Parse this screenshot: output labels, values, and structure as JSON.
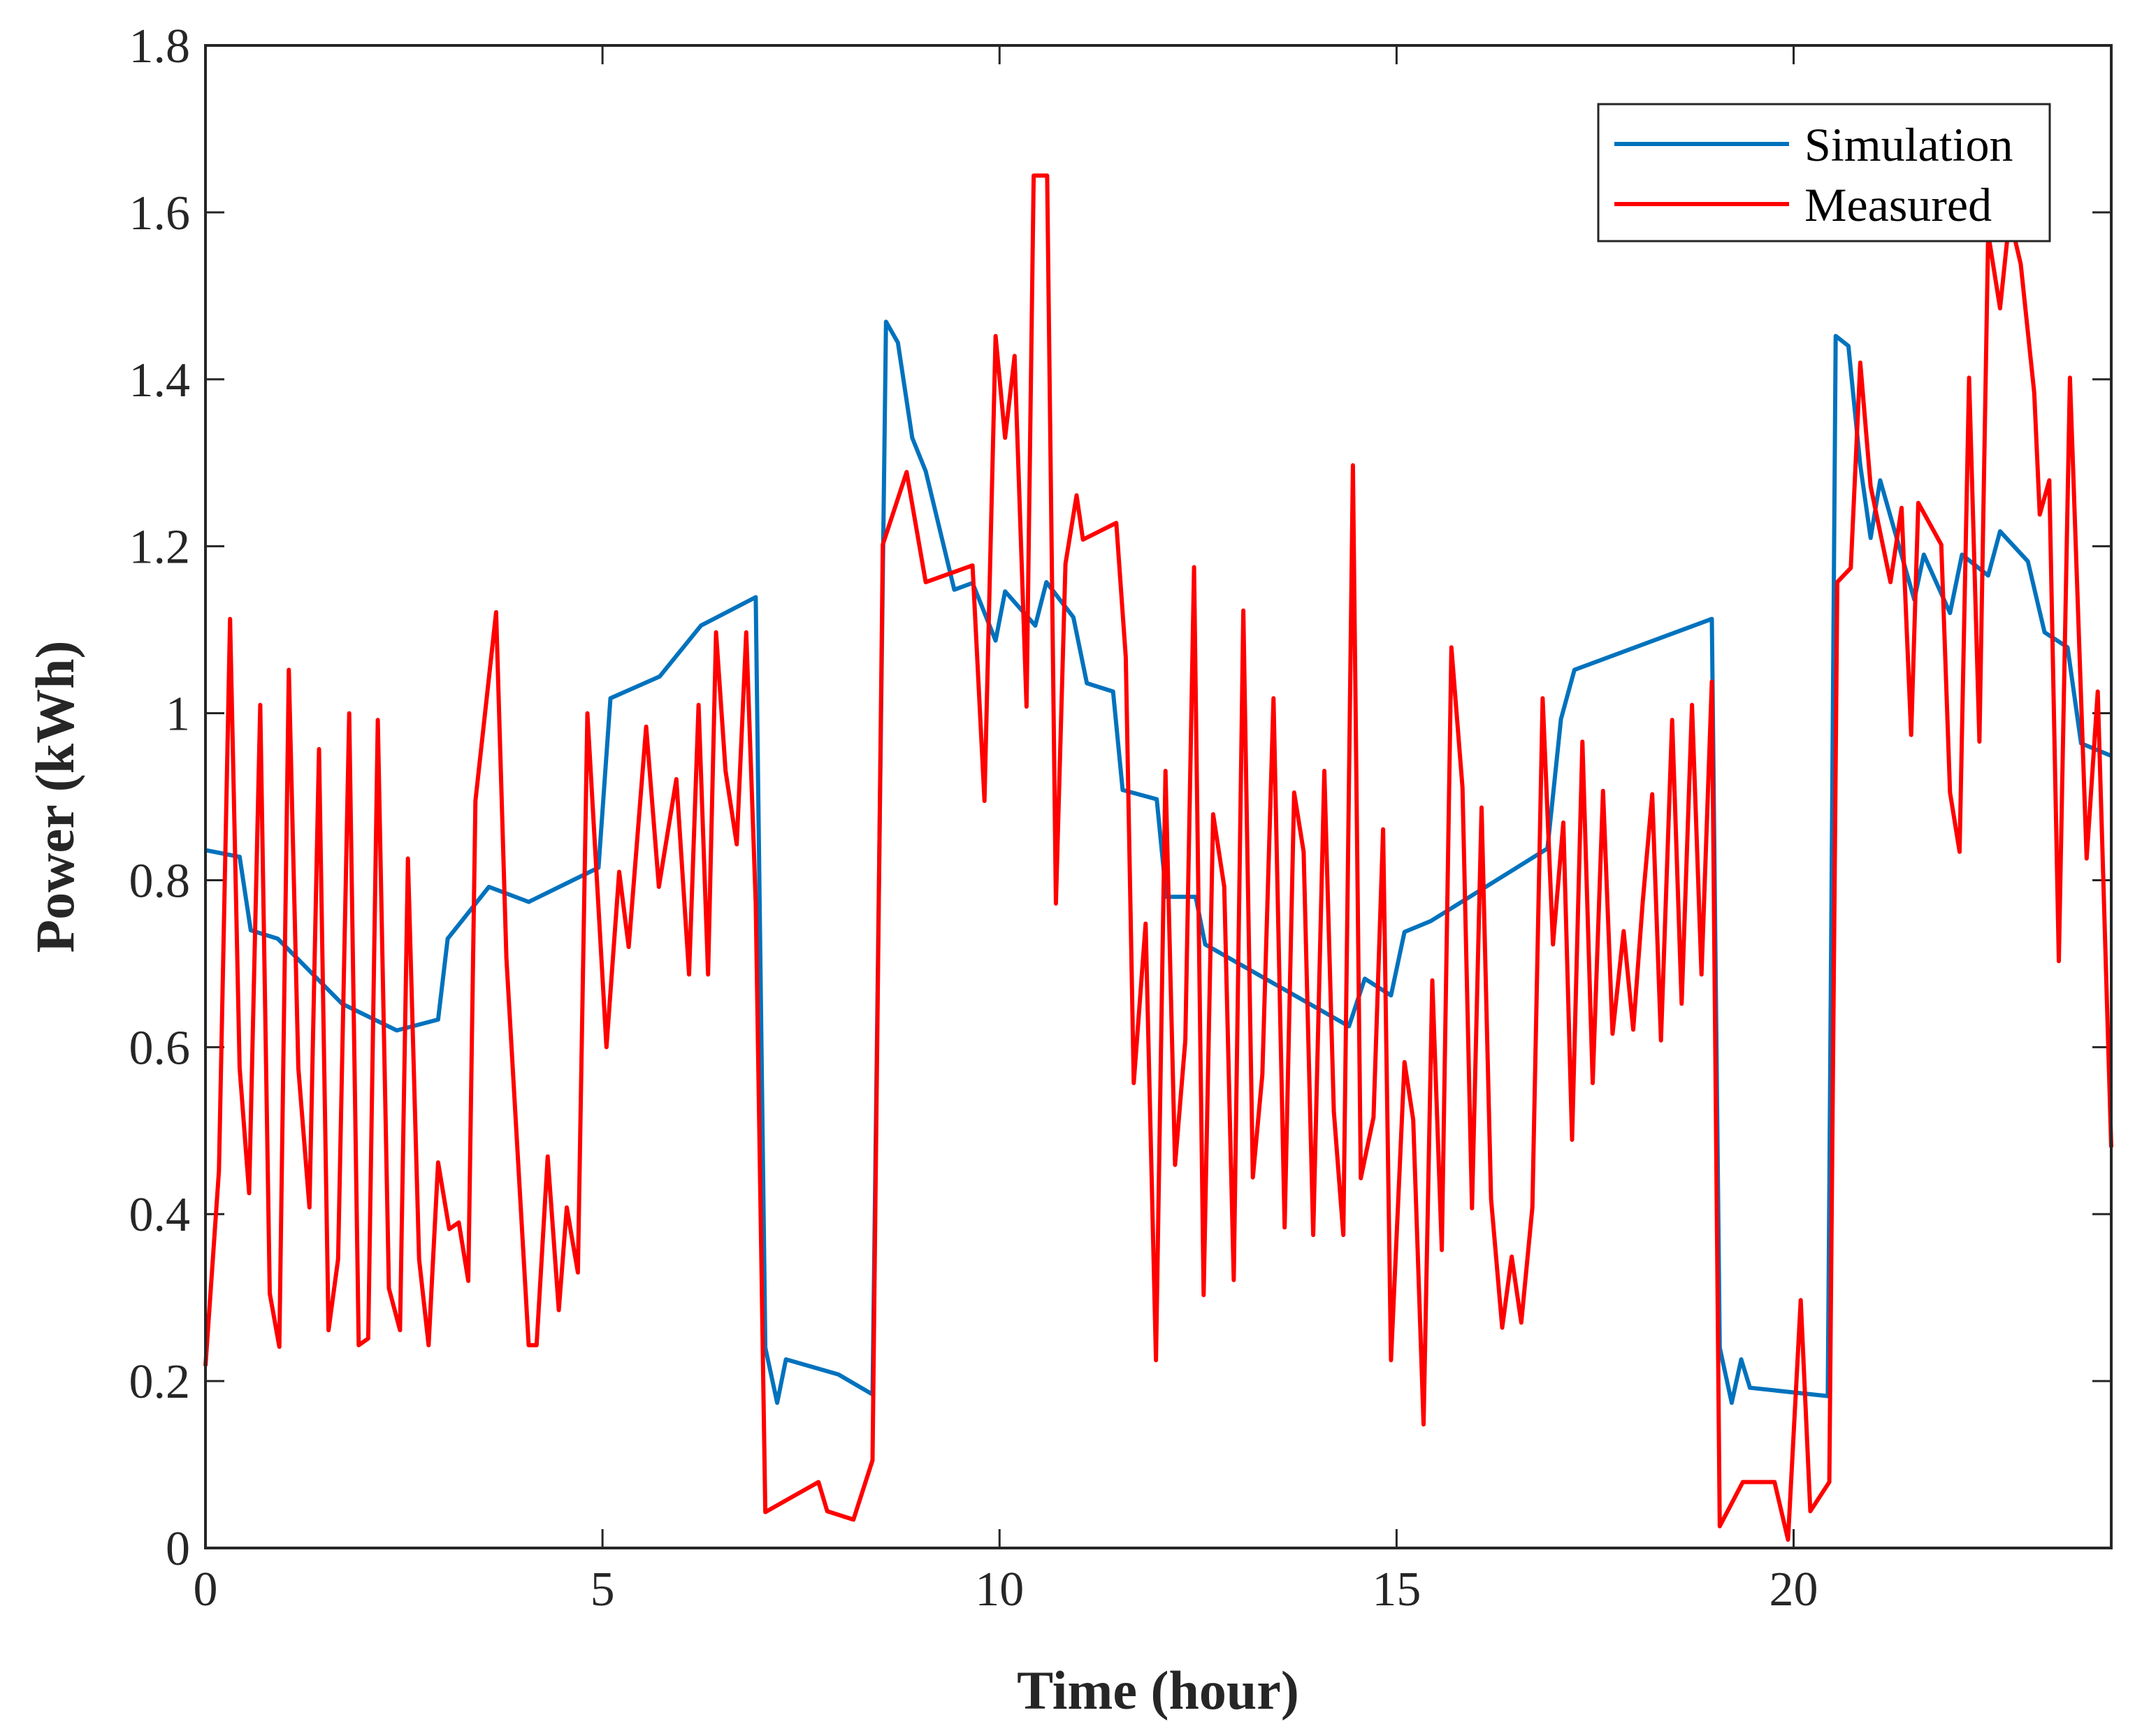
{
  "chart_data": {
    "type": "line",
    "title": "",
    "xlabel": "Time (hour)",
    "ylabel": "Power (kWh)",
    "xlim": [
      0,
      24
    ],
    "ylim": [
      0,
      1.8
    ],
    "xticks": [
      0,
      5,
      10,
      15,
      20
    ],
    "yticks": [
      0,
      0.2,
      0.4,
      0.6,
      0.8,
      1,
      1.2,
      1.4,
      1.6,
      1.8
    ],
    "xtick_labels": [
      "0",
      "5",
      "10",
      "15",
      "20"
    ],
    "ytick_labels": [
      "0",
      "0.2",
      "0.4",
      "0.6",
      "0.8",
      "1",
      "1.2",
      "1.4",
      "1.6",
      "1.8"
    ],
    "grid": false,
    "legend_position": "top-right",
    "series": [
      {
        "name": "Simulation",
        "color": "#0072BD",
        "points": [
          [
            0,
            0.836
          ],
          [
            0.43,
            0.828
          ],
          [
            0.57,
            0.74
          ],
          [
            0.91,
            0.73
          ],
          [
            1.72,
            0.652
          ],
          [
            2.41,
            0.62
          ],
          [
            2.93,
            0.633
          ],
          [
            3.05,
            0.73
          ],
          [
            3.57,
            0.792
          ],
          [
            4.07,
            0.774
          ],
          [
            4.95,
            0.815
          ],
          [
            5.1,
            1.018
          ],
          [
            5.72,
            1.044
          ],
          [
            6.24,
            1.105
          ],
          [
            6.93,
            1.139
          ],
          [
            7.05,
            0.24
          ],
          [
            7.2,
            0.174
          ],
          [
            7.31,
            0.226
          ],
          [
            7.97,
            0.208
          ],
          [
            8.4,
            0.184
          ],
          [
            8.57,
            1.469
          ],
          [
            8.72,
            1.444
          ],
          [
            8.9,
            1.33
          ],
          [
            9.07,
            1.29
          ],
          [
            9.43,
            1.148
          ],
          [
            9.66,
            1.156
          ],
          [
            9.95,
            1.087
          ],
          [
            10.07,
            1.146
          ],
          [
            10.45,
            1.105
          ],
          [
            10.59,
            1.157
          ],
          [
            10.93,
            1.115
          ],
          [
            11.1,
            1.036
          ],
          [
            11.43,
            1.026
          ],
          [
            11.55,
            0.908
          ],
          [
            11.98,
            0.897
          ],
          [
            12.1,
            0.78
          ],
          [
            12.47,
            0.78
          ],
          [
            12.59,
            0.723
          ],
          [
            14.4,
            0.625
          ],
          [
            14.6,
            0.682
          ],
          [
            14.93,
            0.662
          ],
          [
            15.1,
            0.738
          ],
          [
            15.43,
            0.751
          ],
          [
            16.9,
            0.838
          ],
          [
            17.07,
            0.993
          ],
          [
            17.24,
            1.052
          ],
          [
            18.97,
            1.113
          ],
          [
            19.07,
            0.24
          ],
          [
            19.22,
            0.174
          ],
          [
            19.34,
            0.226
          ],
          [
            19.45,
            0.192
          ],
          [
            20.43,
            0.182
          ],
          [
            20.53,
            1.452
          ],
          [
            20.69,
            1.44
          ],
          [
            20.84,
            1.297
          ],
          [
            20.97,
            1.21
          ],
          [
            21.09,
            1.279
          ],
          [
            21.52,
            1.136
          ],
          [
            21.64,
            1.19
          ],
          [
            21.97,
            1.12
          ],
          [
            22.12,
            1.19
          ],
          [
            22.45,
            1.165
          ],
          [
            22.6,
            1.218
          ],
          [
            22.95,
            1.182
          ],
          [
            23.16,
            1.097
          ],
          [
            23.45,
            1.079
          ],
          [
            23.62,
            0.964
          ],
          [
            24,
            0.949
          ]
        ]
      },
      {
        "name": "Measured",
        "color": "#FF0000",
        "points": [
          [
            0,
            0.218
          ],
          [
            0.17,
            0.452
          ],
          [
            0.31,
            1.113
          ],
          [
            0.43,
            0.575
          ],
          [
            0.55,
            0.425
          ],
          [
            0.69,
            1.01
          ],
          [
            0.81,
            0.305
          ],
          [
            0.93,
            0.241
          ],
          [
            1.05,
            1.052
          ],
          [
            1.17,
            0.575
          ],
          [
            1.31,
            0.408
          ],
          [
            1.43,
            0.957
          ],
          [
            1.55,
            0.261
          ],
          [
            1.67,
            0.346
          ],
          [
            1.81,
            1.0
          ],
          [
            1.93,
            0.243
          ],
          [
            2.05,
            0.251
          ],
          [
            2.17,
            0.992
          ],
          [
            2.31,
            0.311
          ],
          [
            2.45,
            0.261
          ],
          [
            2.55,
            0.826
          ],
          [
            2.69,
            0.346
          ],
          [
            2.81,
            0.243
          ],
          [
            2.93,
            0.462
          ],
          [
            3.07,
            0.382
          ],
          [
            3.19,
            0.39
          ],
          [
            3.31,
            0.32
          ],
          [
            3.4,
            0.895
          ],
          [
            3.66,
            1.121
          ],
          [
            3.79,
            0.707
          ],
          [
            4.07,
            0.243
          ],
          [
            4.17,
            0.243
          ],
          [
            4.31,
            0.469
          ],
          [
            4.45,
            0.285
          ],
          [
            4.55,
            0.408
          ],
          [
            4.69,
            0.33
          ],
          [
            4.81,
            1.0
          ],
          [
            5.05,
            0.6
          ],
          [
            5.21,
            0.81
          ],
          [
            5.33,
            0.72
          ],
          [
            5.55,
            0.984
          ],
          [
            5.71,
            0.792
          ],
          [
            5.93,
            0.921
          ],
          [
            6.09,
            0.687
          ],
          [
            6.21,
            1.01
          ],
          [
            6.33,
            0.687
          ],
          [
            6.43,
            1.097
          ],
          [
            6.55,
            0.931
          ],
          [
            6.69,
            0.843
          ],
          [
            6.81,
            1.097
          ],
          [
            6.93,
            0.772
          ],
          [
            7.05,
            0.043
          ],
          [
            7.72,
            0.079
          ],
          [
            7.83,
            0.044
          ],
          [
            8.16,
            0.034
          ],
          [
            8.4,
            0.105
          ],
          [
            8.53,
            1.202
          ],
          [
            8.83,
            1.289
          ],
          [
            9.07,
            1.157
          ],
          [
            9.66,
            1.177
          ],
          [
            9.81,
            0.895
          ],
          [
            9.95,
            1.452
          ],
          [
            10.07,
            1.33
          ],
          [
            10.19,
            1.428
          ],
          [
            10.34,
            1.008
          ],
          [
            10.43,
            1.644
          ],
          [
            10.6,
            1.644
          ],
          [
            10.71,
            0.772
          ],
          [
            10.83,
            1.179
          ],
          [
            10.97,
            1.261
          ],
          [
            11.05,
            1.208
          ],
          [
            11.47,
            1.228
          ],
          [
            11.59,
            1.067
          ],
          [
            11.69,
            0.557
          ],
          [
            11.84,
            0.748
          ],
          [
            11.97,
            0.225
          ],
          [
            12.09,
            0.931
          ],
          [
            12.21,
            0.459
          ],
          [
            12.34,
            0.608
          ],
          [
            12.45,
            1.175
          ],
          [
            12.57,
            0.303
          ],
          [
            12.69,
            0.879
          ],
          [
            12.83,
            0.792
          ],
          [
            12.95,
            0.321
          ],
          [
            13.07,
            1.123
          ],
          [
            13.19,
            0.444
          ],
          [
            13.31,
            0.567
          ],
          [
            13.45,
            1.018
          ],
          [
            13.59,
            0.384
          ],
          [
            13.71,
            0.905
          ],
          [
            13.83,
            0.834
          ],
          [
            13.95,
            0.375
          ],
          [
            14.09,
            0.931
          ],
          [
            14.21,
            0.523
          ],
          [
            14.33,
            0.375
          ],
          [
            14.45,
            1.297
          ],
          [
            14.55,
            0.443
          ],
          [
            14.71,
            0.516
          ],
          [
            14.83,
            0.861
          ],
          [
            14.93,
            0.225
          ],
          [
            15.1,
            0.582
          ],
          [
            15.21,
            0.513
          ],
          [
            15.34,
            0.148
          ],
          [
            15.45,
            0.68
          ],
          [
            15.57,
            0.357
          ],
          [
            15.69,
            1.079
          ],
          [
            15.83,
            0.911
          ],
          [
            15.95,
            0.407
          ],
          [
            16.07,
            0.887
          ],
          [
            16.19,
            0.418
          ],
          [
            16.33,
            0.264
          ],
          [
            16.45,
            0.349
          ],
          [
            16.57,
            0.27
          ],
          [
            16.71,
            0.408
          ],
          [
            16.84,
            1.018
          ],
          [
            16.97,
            0.723
          ],
          [
            17.1,
            0.869
          ],
          [
            17.21,
            0.489
          ],
          [
            17.34,
            0.966
          ],
          [
            17.47,
            0.557
          ],
          [
            17.6,
            0.907
          ],
          [
            17.72,
            0.616
          ],
          [
            17.86,
            0.739
          ],
          [
            17.98,
            0.621
          ],
          [
            18.1,
            0.774
          ],
          [
            18.22,
            0.903
          ],
          [
            18.33,
            0.608
          ],
          [
            18.47,
            0.992
          ],
          [
            18.59,
            0.652
          ],
          [
            18.72,
            1.01
          ],
          [
            18.84,
            0.687
          ],
          [
            18.97,
            1.038
          ],
          [
            19.07,
            0.026
          ],
          [
            19.36,
            0.079
          ],
          [
            19.76,
            0.079
          ],
          [
            19.93,
            0.01
          ],
          [
            20.09,
            0.297
          ],
          [
            20.21,
            0.044
          ],
          [
            20.45,
            0.079
          ],
          [
            20.55,
            1.157
          ],
          [
            20.72,
            1.174
          ],
          [
            20.84,
            1.42
          ],
          [
            20.97,
            1.272
          ],
          [
            21.22,
            1.157
          ],
          [
            21.36,
            1.246
          ],
          [
            21.48,
            0.974
          ],
          [
            21.57,
            1.252
          ],
          [
            21.86,
            1.202
          ],
          [
            21.97,
            0.905
          ],
          [
            22.09,
            0.834
          ],
          [
            22.21,
            1.402
          ],
          [
            22.34,
            0.966
          ],
          [
            22.45,
            1.575
          ],
          [
            22.6,
            1.485
          ],
          [
            22.72,
            1.595
          ],
          [
            22.86,
            1.538
          ],
          [
            23.03,
            1.384
          ],
          [
            23.1,
            1.238
          ],
          [
            23.22,
            1.279
          ],
          [
            23.34,
            0.703
          ],
          [
            23.48,
            1.402
          ],
          [
            23.69,
            0.826
          ],
          [
            23.83,
            1.026
          ],
          [
            24,
            0.48
          ]
        ]
      }
    ]
  }
}
